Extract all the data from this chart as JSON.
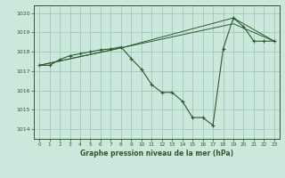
{
  "title": "Graphe pression niveau de la mer (hPa)",
  "background_color": "#cce8dd",
  "grid_color": "#99ccbb",
  "line_color": "#2d5a2d",
  "xlim": [
    -0.5,
    23.5
  ],
  "ylim": [
    1013.5,
    1020.4
  ],
  "yticks": [
    1014,
    1015,
    1016,
    1017,
    1018,
    1019,
    1020
  ],
  "xticks": [
    0,
    1,
    2,
    3,
    4,
    5,
    6,
    7,
    8,
    9,
    10,
    11,
    12,
    13,
    14,
    15,
    16,
    17,
    18,
    19,
    20,
    21,
    22,
    23
  ],
  "series_main": {
    "x": [
      0,
      1,
      2,
      3,
      4,
      5,
      6,
      7,
      8,
      9,
      10,
      11,
      12,
      13,
      14,
      15,
      16,
      17,
      18,
      19,
      20,
      21,
      22,
      23
    ],
    "y": [
      1017.3,
      1017.3,
      1017.6,
      1017.8,
      1017.9,
      1018.0,
      1018.1,
      1018.15,
      1018.25,
      1017.65,
      1017.1,
      1016.3,
      1015.9,
      1015.9,
      1015.45,
      1014.6,
      1014.6,
      1014.2,
      1018.15,
      1019.75,
      1019.3,
      1018.55,
      1018.55,
      1018.55
    ]
  },
  "series_line1": {
    "x": [
      0,
      8,
      19,
      23
    ],
    "y": [
      1017.3,
      1018.2,
      1019.75,
      1018.55
    ]
  },
  "series_line2": {
    "x": [
      0,
      8,
      19,
      23
    ],
    "y": [
      1017.3,
      1018.2,
      1019.45,
      1018.55
    ]
  }
}
